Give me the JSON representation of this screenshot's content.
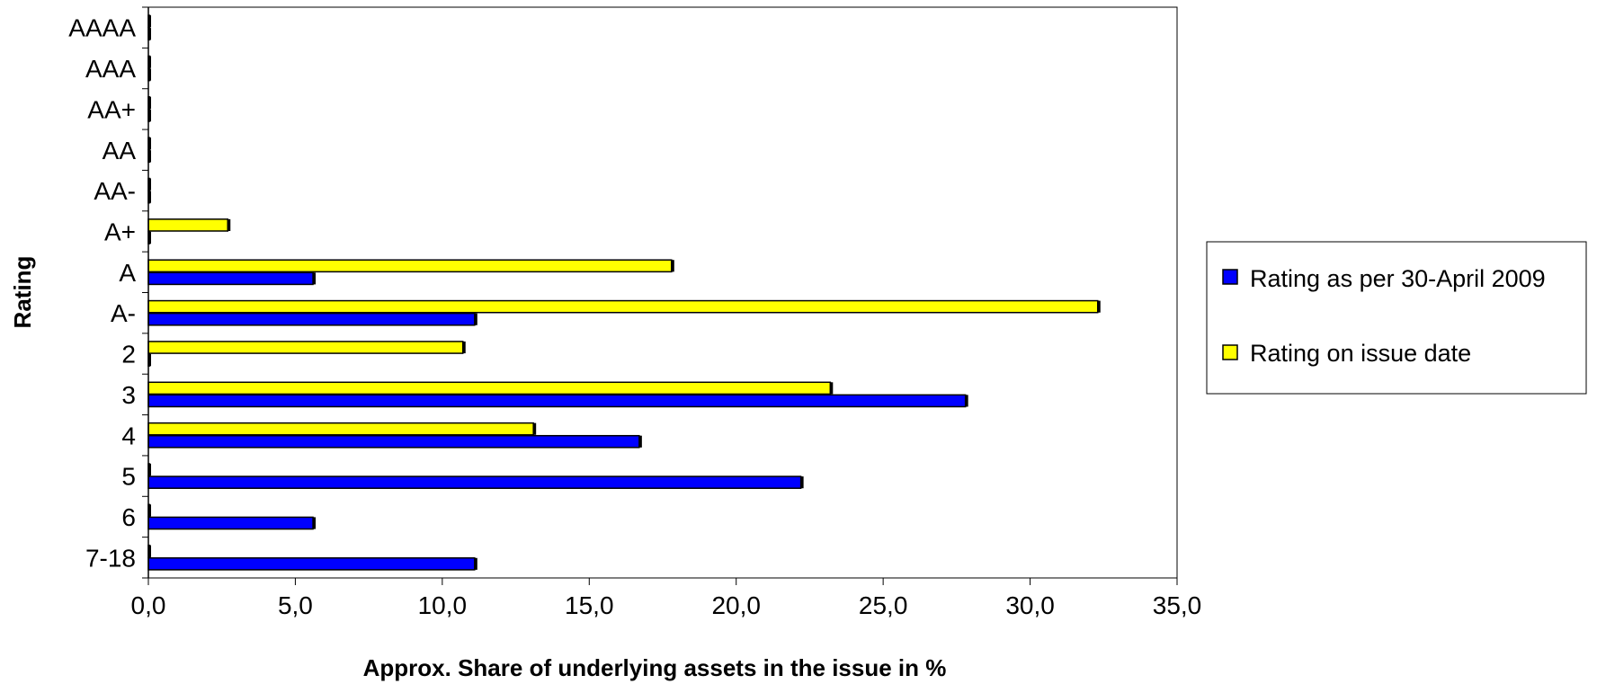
{
  "chart_data": {
    "type": "bar",
    "orientation": "horizontal",
    "title": "",
    "xlabel": "Approx. Share of underlying assets in the issue in %",
    "ylabel": "Rating",
    "xlim": [
      0,
      35
    ],
    "x_ticks": [
      "0,0",
      "5,0",
      "10,0",
      "15,0",
      "20,0",
      "25,0",
      "30,0",
      "35,0"
    ],
    "categories": [
      "AAAA",
      "AAA",
      "AA+",
      "AA",
      "AA-",
      "A+",
      "A",
      "A-",
      "2",
      "3",
      "4",
      "5",
      "6",
      "7-18"
    ],
    "series": [
      {
        "name": "Rating as per 30-April 2009",
        "color": "#0000ff",
        "values": [
          0,
          0,
          0,
          0,
          0,
          0,
          5.6,
          11.1,
          0,
          27.8,
          16.7,
          22.2,
          5.6,
          11.1
        ]
      },
      {
        "name": "Rating on issue date",
        "color": "#ffff00",
        "values": [
          0,
          0,
          0,
          0,
          0,
          2.7,
          17.8,
          32.3,
          10.7,
          23.2,
          13.1,
          0,
          0,
          0
        ]
      }
    ],
    "grid": false,
    "legend_position": "right"
  }
}
